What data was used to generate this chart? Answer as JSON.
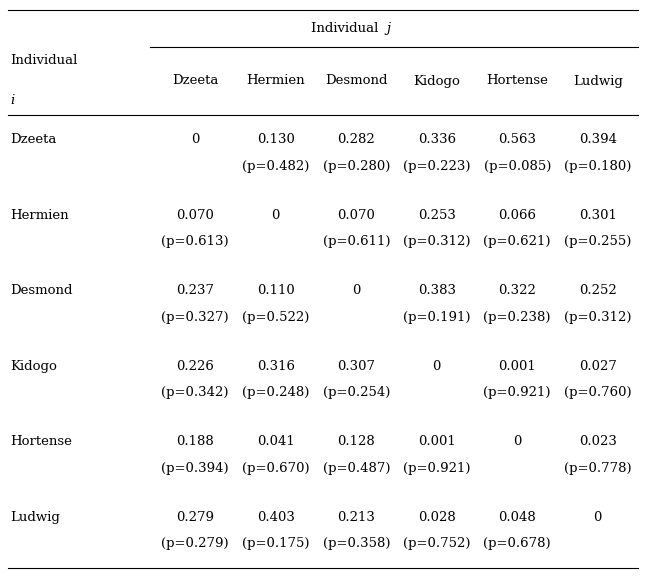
{
  "col_header_top_normal": "Individual  ",
  "col_header_top_italic": "j",
  "col_header_row": [
    "Dzeeta",
    "Hermien",
    "Desmond",
    "Kidogo",
    "Hortense",
    "Ludwig"
  ],
  "row_header_label1": "Individual",
  "row_header_label2": "i",
  "row_headers": [
    "Dzeeta",
    "Hermien",
    "Desmond",
    "Kidogo",
    "Hortense",
    "Ludwig"
  ],
  "cell_values": [
    [
      "0",
      "0.130",
      "0.282",
      "0.336",
      "0.563",
      "0.394"
    ],
    [
      "0.070",
      "0",
      "0.070",
      "0.253",
      "0.066",
      "0.301"
    ],
    [
      "0.237",
      "0.110",
      "0",
      "0.383",
      "0.322",
      "0.252"
    ],
    [
      "0.226",
      "0.316",
      "0.307",
      "0",
      "0.001",
      "0.027"
    ],
    [
      "0.188",
      "0.041",
      "0.128",
      "0.001",
      "0",
      "0.023"
    ],
    [
      "0.279",
      "0.403",
      "0.213",
      "0.028",
      "0.048",
      "0"
    ]
  ],
  "cell_pvalues": [
    [
      "",
      "(p=0.482)",
      "(p=0.280)",
      "(p=0.223)",
      "(p=0.085)",
      "(p=0.180)"
    ],
    [
      "(p=0.613)",
      "",
      "(p=0.611)",
      "(p=0.312)",
      "(p=0.621)",
      "(p=0.255)"
    ],
    [
      "(p=0.327)",
      "(p=0.522)",
      "",
      "(p=0.191)",
      "(p=0.238)",
      "(p=0.312)"
    ],
    [
      "(p=0.342)",
      "(p=0.248)",
      "(p=0.254)",
      "",
      "(p=0.921)",
      "(p=0.760)"
    ],
    [
      "(p=0.394)",
      "(p=0.670)",
      "(p=0.487)",
      "(p=0.921)",
      "",
      "(p=0.778)"
    ],
    [
      "(p=0.279)",
      "(p=0.175)",
      "(p=0.358)",
      "(p=0.752)",
      "(p=0.678)",
      ""
    ]
  ],
  "font_size": 9.5,
  "figsize": [
    6.46,
    5.77
  ],
  "dpi": 100
}
